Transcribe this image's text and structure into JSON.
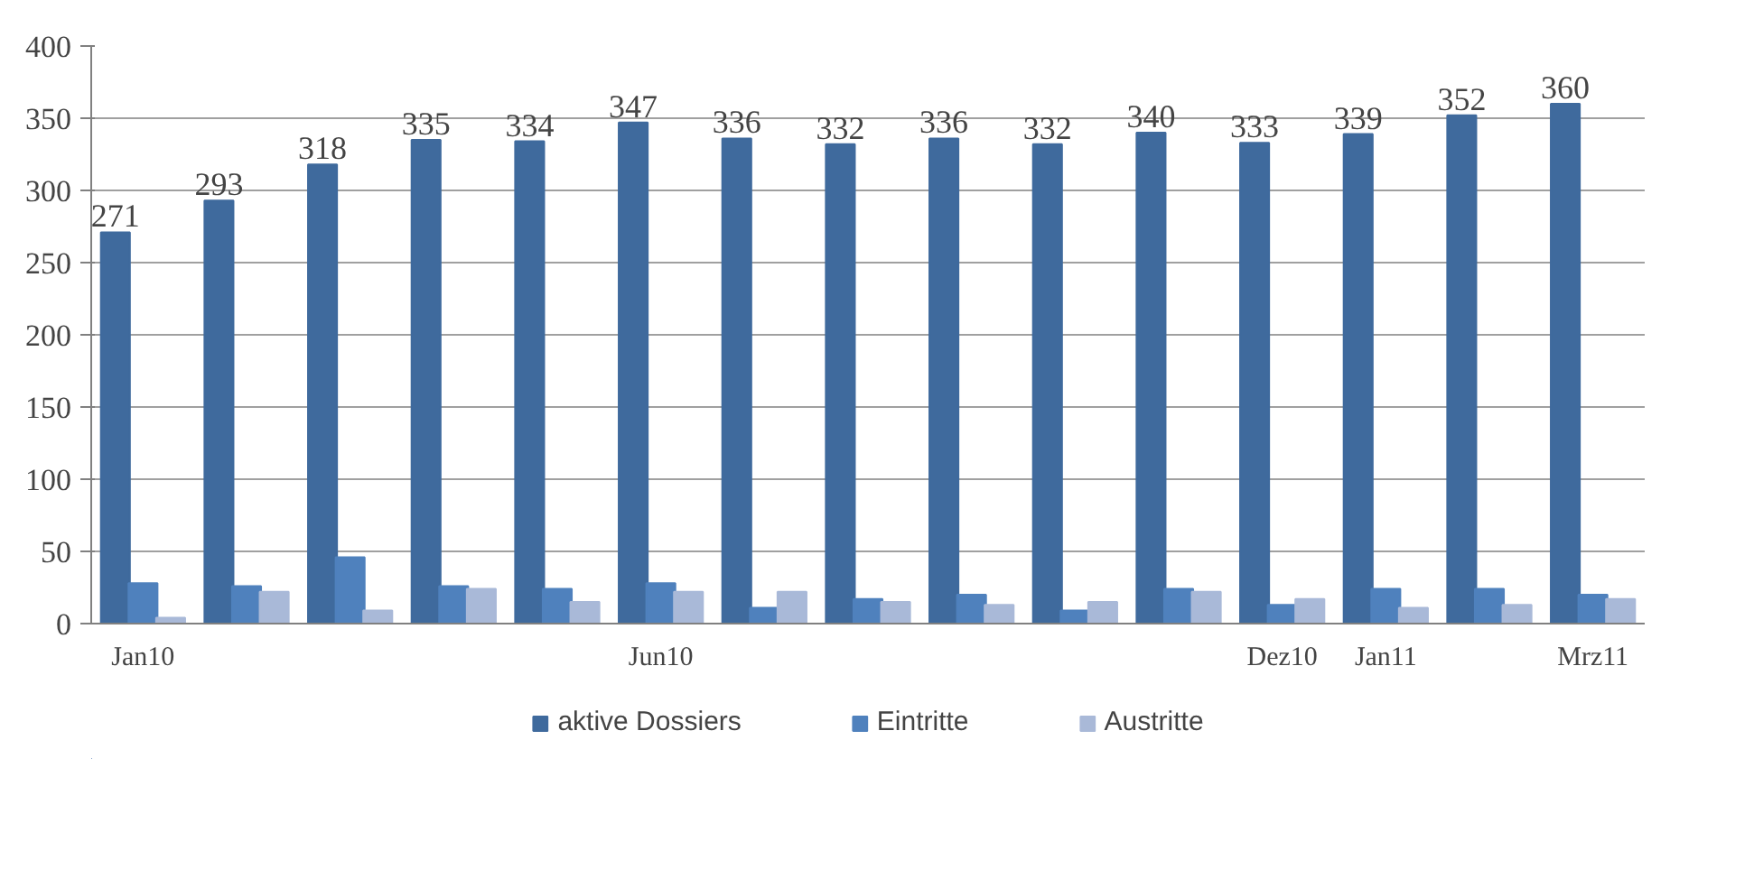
{
  "chart_data": {
    "type": "bar",
    "categories": [
      "Jan10",
      null,
      null,
      null,
      null,
      "Jun10",
      null,
      null,
      null,
      null,
      null,
      "Dez10",
      "Jan11",
      null,
      "Mrz11"
    ],
    "series": [
      {
        "name": "aktive Dossiers",
        "color": "#3f6a9d",
        "values": [
          271,
          293,
          318,
          335,
          334,
          347,
          336,
          332,
          336,
          332,
          340,
          333,
          339,
          352,
          360
        ],
        "value_labels": [
          "271",
          "293",
          "318",
          "335",
          "334",
          "347",
          "336",
          "332",
          "336",
          "332",
          "340",
          "333",
          "339",
          "352",
          "360"
        ]
      },
      {
        "name": "Eintritte",
        "color": "#4f81bd",
        "values": [
          28,
          26,
          46,
          26,
          24,
          28,
          11,
          17,
          20,
          9,
          24,
          13,
          24,
          24,
          20
        ]
      },
      {
        "name": "Austritte",
        "color": "#a9b9d8",
        "values": [
          4,
          22,
          9,
          24,
          15,
          22,
          22,
          15,
          13,
          15,
          22,
          17,
          11,
          13,
          17
        ]
      }
    ],
    "ylim": [
      0,
      400
    ],
    "yticks": [
      0,
      50,
      100,
      150,
      200,
      250,
      300,
      350,
      400
    ],
    "grid": "y",
    "legend": "bottom"
  }
}
